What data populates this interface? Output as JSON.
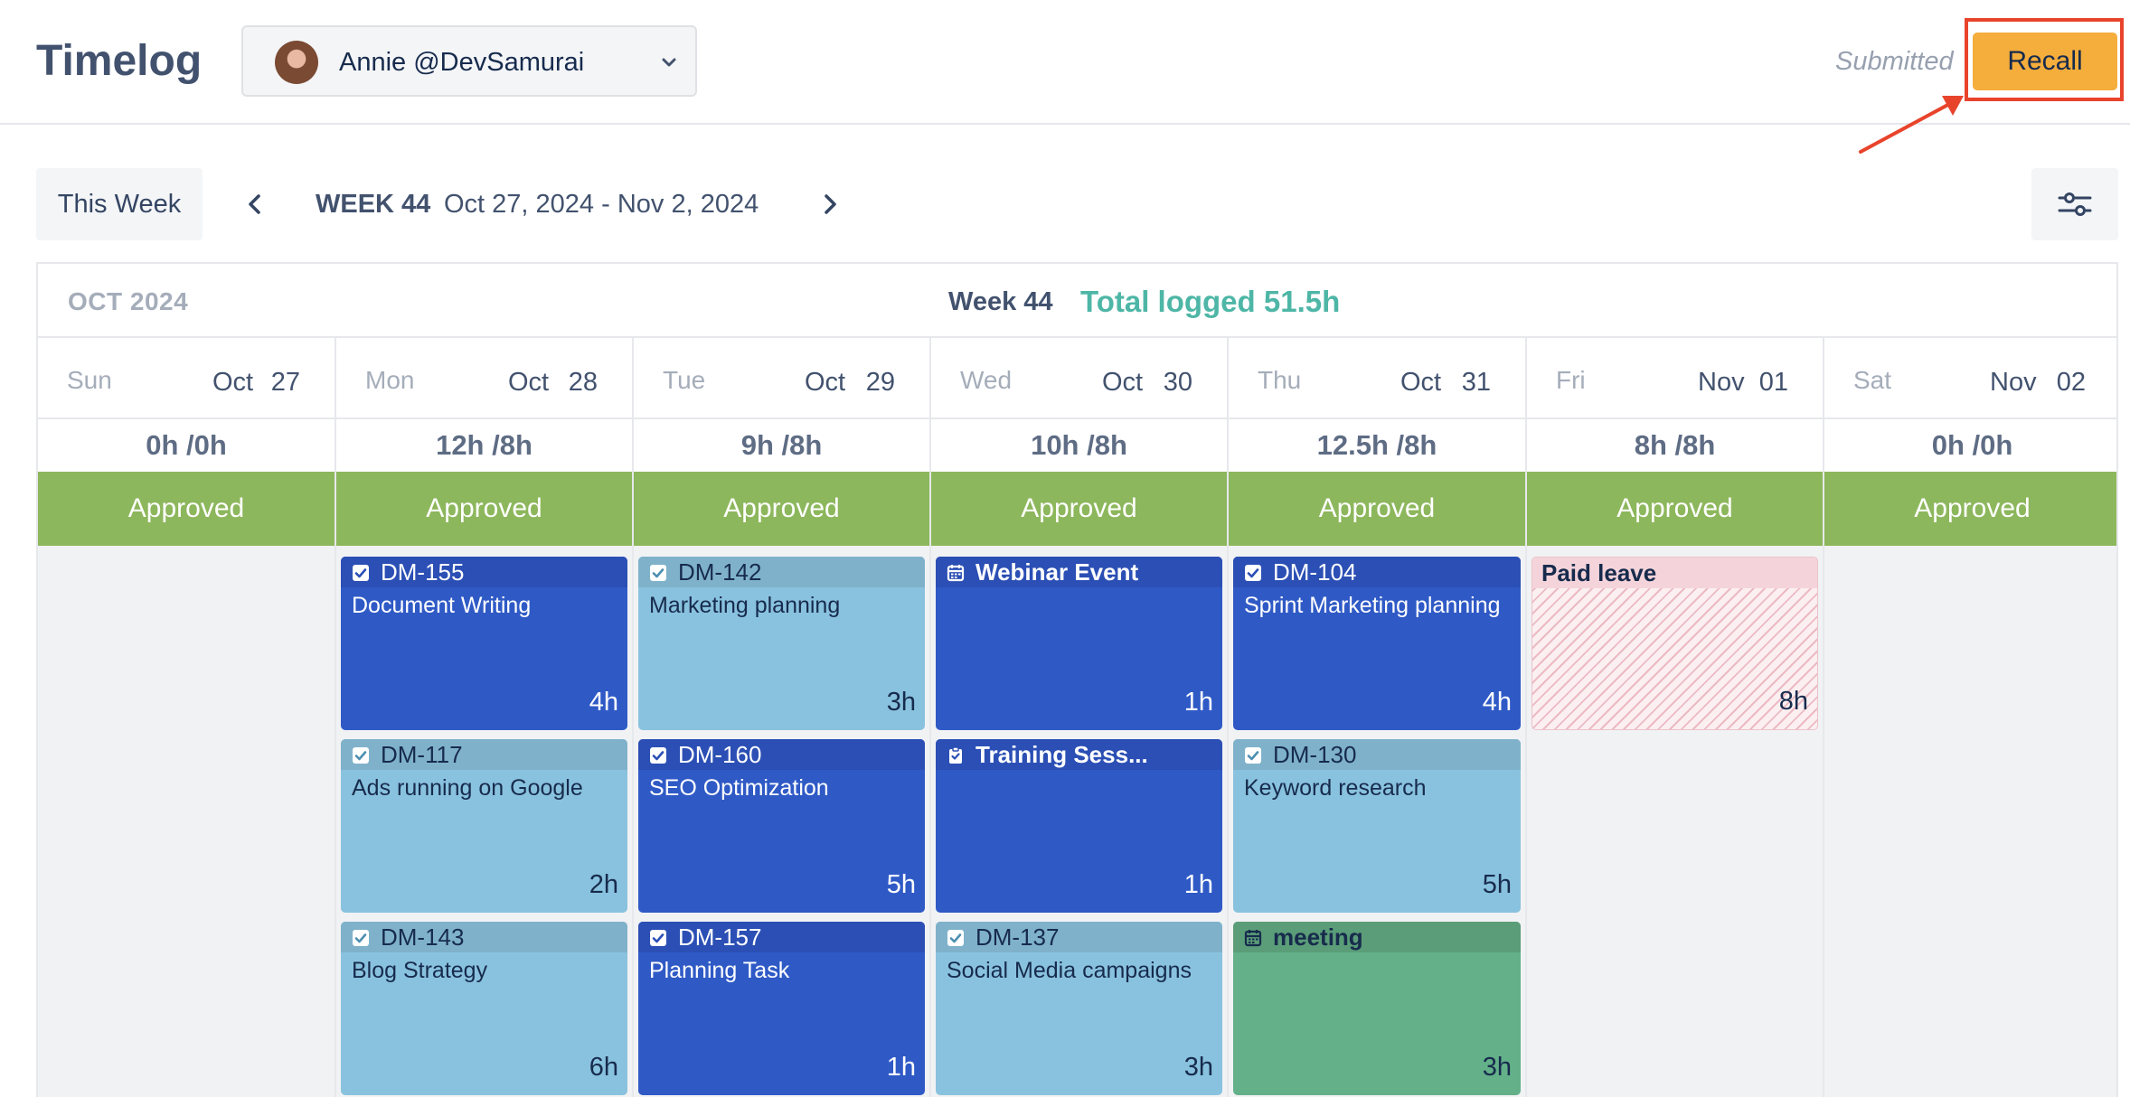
{
  "header": {
    "title": "Timelog",
    "user": {
      "name": "Annie @DevSamurai",
      "avatar_icon": "user-avatar"
    },
    "status": "Submitted",
    "recall_label": "Recall",
    "colors": {
      "recall": "#f5ad3c",
      "highlight": "#e8442c"
    }
  },
  "nav": {
    "this_week_label": "This Week",
    "week_label": "WEEK 44",
    "date_range": "Oct 27, 2024 - Nov 2, 2024",
    "prev_icon": "chevron-left-icon",
    "next_icon": "chevron-right-icon",
    "filter_icon": "sliders-icon"
  },
  "calendar": {
    "month": "OCT 2024",
    "week": "Week 44",
    "total_logged": "Total logged 51.5h",
    "days": [
      {
        "dow": "Sun",
        "month": "Oct",
        "day": "27",
        "hours": "0h /0h",
        "status": "Approved",
        "cards": []
      },
      {
        "dow": "Mon",
        "month": "Oct",
        "day": "28",
        "hours": "12h /8h",
        "status": "Approved",
        "cards": [
          {
            "key": "DM-155",
            "title": "Document Writing",
            "hours": "4h"
          },
          {
            "key": "DM-117",
            "title": "Ads running on Google",
            "hours": "2h"
          },
          {
            "key": "DM-143",
            "title": "Blog Strategy",
            "hours": "6h"
          }
        ]
      },
      {
        "dow": "Tue",
        "month": "Oct",
        "day": "29",
        "hours": "9h /8h",
        "status": "Approved",
        "cards": [
          {
            "key": "DM-142",
            "title": "Marketing planning",
            "hours": "3h"
          },
          {
            "key": "DM-160",
            "title": "SEO Optimization",
            "hours": "5h"
          },
          {
            "key": "DM-157",
            "title": "Planning Task",
            "hours": "1h"
          }
        ]
      },
      {
        "dow": "Wed",
        "month": "Oct",
        "day": "30",
        "hours": "10h /8h",
        "status": "Approved",
        "cards": [
          {
            "key": "Webinar Event",
            "title": "",
            "hours": "1h"
          },
          {
            "key": "Training Sess...",
            "title": "",
            "hours": "1h"
          },
          {
            "key": "DM-137",
            "title": "Social Media campaigns",
            "hours": "3h"
          }
        ]
      },
      {
        "dow": "Thu",
        "month": "Oct",
        "day": "31",
        "hours": "12.5h /8h",
        "status": "Approved",
        "cards": [
          {
            "key": "DM-104",
            "title": "Sprint Marketing planning",
            "hours": "4h"
          },
          {
            "key": "DM-130",
            "title": "Keyword research",
            "hours": "5h"
          },
          {
            "key": "meeting",
            "title": "",
            "hours": "3h"
          }
        ]
      },
      {
        "dow": "Fri",
        "month": "Nov",
        "day": "01",
        "hours": "8h /8h",
        "status": "Approved",
        "cards": [
          {
            "key": "Paid leave",
            "title": "",
            "hours": "8h"
          }
        ]
      },
      {
        "dow": "Sat",
        "month": "Nov",
        "day": "02",
        "hours": "0h /0h",
        "status": "Approved",
        "cards": []
      }
    ]
  }
}
